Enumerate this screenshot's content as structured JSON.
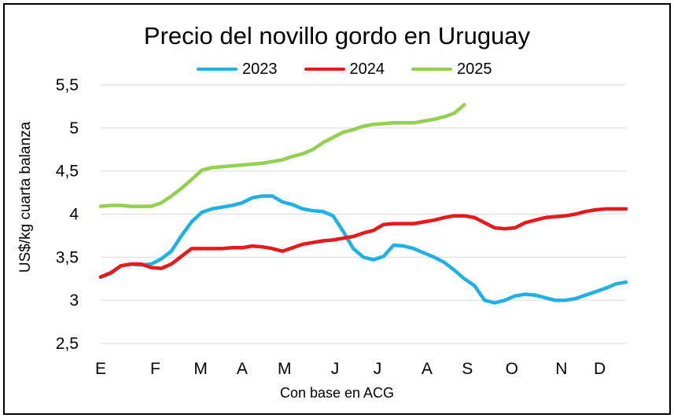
{
  "chart_data": {
    "type": "line",
    "title": "Precio del novillo gordo en Uruguay",
    "xlabel": "Con base en ACG",
    "ylabel": "US$/kg cuarta balanza",
    "ylim": [
      2.5,
      5.5
    ],
    "yticks": [
      5.5,
      5,
      4.5,
      4,
      3.5,
      3,
      2.5
    ],
    "ytick_labels": [
      "5,5",
      "5",
      "4,5",
      "4",
      "3,5",
      "3",
      "2,5"
    ],
    "x_unit": "week",
    "xlim": [
      0,
      52
    ],
    "xticks": [
      {
        "label": "E",
        "x": 0
      },
      {
        "label": "F",
        "x": 5.4
      },
      {
        "label": "M",
        "x": 9.9
      },
      {
        "label": "A",
        "x": 14
      },
      {
        "label": "M",
        "x": 18.2
      },
      {
        "label": "J",
        "x": 23.2
      },
      {
        "label": "J",
        "x": 27.4
      },
      {
        "label": "A",
        "x": 32.3
      },
      {
        "label": "S",
        "x": 36.3
      },
      {
        "label": "O",
        "x": 40.7
      },
      {
        "label": "N",
        "x": 45.6
      },
      {
        "label": "D",
        "x": 49.4
      }
    ],
    "grid": "horizontal",
    "legend_position": "top",
    "series": [
      {
        "name": "2023",
        "color": "#1fb0e6",
        "x": [
          0,
          1,
          2,
          3,
          4,
          5,
          6,
          7,
          8,
          9,
          10,
          11,
          12,
          13,
          14,
          15,
          16,
          17,
          18,
          19,
          20,
          21,
          22,
          23,
          24,
          25,
          26,
          27,
          28,
          29,
          30,
          31,
          32,
          33,
          34,
          35,
          36,
          37,
          38,
          39,
          40,
          41,
          42,
          43,
          44,
          45,
          46,
          47,
          48,
          49,
          50,
          51,
          52
        ],
        "values": [
          3.27,
          3.31,
          3.4,
          3.42,
          3.41,
          3.42,
          3.48,
          3.57,
          3.75,
          3.91,
          4.02,
          4.06,
          4.08,
          4.1,
          4.13,
          4.19,
          4.21,
          4.21,
          4.14,
          4.11,
          4.06,
          4.04,
          4.03,
          3.98,
          3.8,
          3.6,
          3.5,
          3.47,
          3.51,
          3.64,
          3.63,
          3.6,
          3.55,
          3.5,
          3.44,
          3.35,
          3.25,
          3.17,
          3.0,
          2.97,
          3.0,
          3.05,
          3.07,
          3.06,
          3.03,
          3.0,
          3.0,
          3.02,
          3.06,
          3.1,
          3.14,
          3.19,
          3.21
        ]
      },
      {
        "name": "2024",
        "color": "#e8191b",
        "x": [
          0,
          1,
          2,
          3,
          4,
          5,
          6,
          7,
          8,
          9,
          10,
          11,
          12,
          13,
          14,
          15,
          16,
          17,
          18,
          19,
          20,
          21,
          22,
          23,
          24,
          25,
          26,
          27,
          28,
          29,
          30,
          31,
          32,
          33,
          34,
          35,
          36,
          37,
          38,
          39,
          40,
          41,
          42,
          43,
          44,
          45,
          46,
          47,
          48,
          49,
          50,
          51,
          52
        ],
        "values": [
          3.27,
          3.32,
          3.4,
          3.42,
          3.42,
          3.38,
          3.37,
          3.42,
          3.51,
          3.6,
          3.6,
          3.6,
          3.6,
          3.61,
          3.61,
          3.63,
          3.62,
          3.6,
          3.57,
          3.61,
          3.65,
          3.67,
          3.69,
          3.7,
          3.72,
          3.74,
          3.78,
          3.81,
          3.88,
          3.89,
          3.89,
          3.89,
          3.91,
          3.93,
          3.96,
          3.98,
          3.98,
          3.96,
          3.9,
          3.84,
          3.83,
          3.84,
          3.9,
          3.93,
          3.96,
          3.97,
          3.98,
          4.0,
          4.03,
          4.05,
          4.06,
          4.06,
          4.06
        ]
      },
      {
        "name": "2025",
        "color": "#92d050",
        "x": [
          0,
          1,
          2,
          3,
          4,
          5,
          6,
          7,
          8,
          9,
          10,
          11,
          12,
          13,
          14,
          15,
          16,
          17,
          18,
          19,
          20,
          21,
          22,
          23,
          24,
          25,
          26,
          27,
          28,
          29,
          30,
          31,
          32,
          33,
          34,
          35,
          36
        ],
        "values": [
          4.09,
          4.1,
          4.1,
          4.09,
          4.09,
          4.09,
          4.13,
          4.21,
          4.3,
          4.4,
          4.51,
          4.54,
          4.55,
          4.56,
          4.57,
          4.58,
          4.59,
          4.61,
          4.63,
          4.67,
          4.7,
          4.75,
          4.83,
          4.89,
          4.95,
          4.98,
          5.02,
          5.04,
          5.05,
          5.06,
          5.06,
          5.06,
          5.08,
          5.1,
          5.13,
          5.17,
          5.27
        ]
      }
    ]
  }
}
